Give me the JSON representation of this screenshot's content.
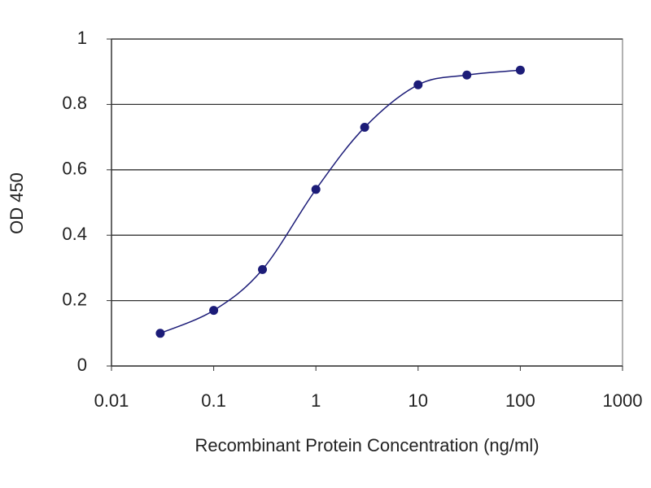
{
  "chart_data": {
    "type": "line",
    "xlabel": "Recombinant Protein Concentration (ng/ml)",
    "ylabel": "OD 450",
    "x": [
      0.03,
      0.1,
      0.3,
      1,
      3,
      10,
      30,
      100
    ],
    "series": [
      {
        "color": "#1c1c78",
        "values": [
          0.1,
          0.17,
          0.295,
          0.54,
          0.73,
          0.86,
          0.89,
          0.905
        ]
      }
    ],
    "xscale": "log",
    "xlim": [
      0.01,
      1000
    ],
    "xticks": [
      0.01,
      0.1,
      1,
      10,
      100,
      1000
    ],
    "ylim": [
      0,
      1
    ],
    "yticks": [
      0,
      0.2,
      0.4,
      0.6,
      0.8,
      1
    ],
    "grid": true
  }
}
